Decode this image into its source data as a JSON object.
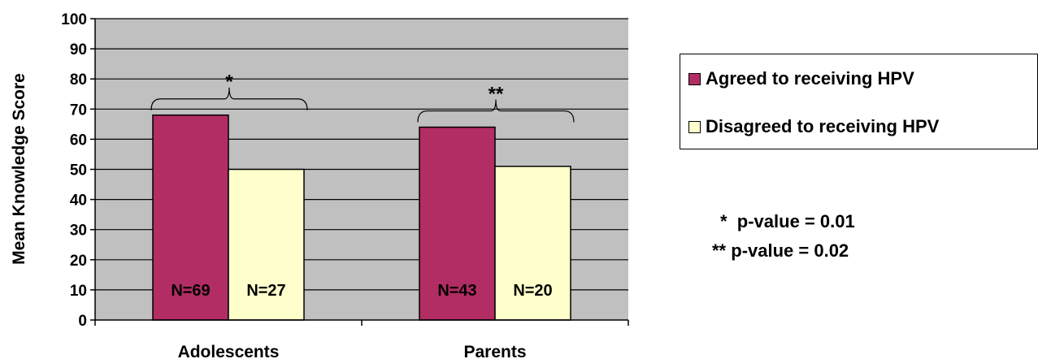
{
  "chart_data": {
    "type": "bar",
    "title": "",
    "xlabel": "",
    "ylabel": "Mean Knowledge Score",
    "ylim": [
      0,
      100
    ],
    "yticks": [
      "0",
      "10",
      "20",
      "30",
      "40",
      "50",
      "60",
      "70",
      "80",
      "90",
      "100"
    ],
    "grid": true,
    "legend_position": "right",
    "categories": [
      "Adolescents",
      "Parents"
    ],
    "series": [
      {
        "name": "Agreed to receiving HPV",
        "color": "#B22D63",
        "values": [
          68,
          64
        ],
        "labels": [
          "N=69",
          "N=43"
        ]
      },
      {
        "name": "Disagreed to receiving HPV",
        "color": "#FFFFCC",
        "values": [
          50,
          51
        ],
        "labels": [
          "N=27",
          "N=20"
        ]
      }
    ],
    "significance_markers": [
      "*",
      "**"
    ],
    "annotations": [
      {
        "marker": "*",
        "text": "p-value = 0.01"
      },
      {
        "marker": "**",
        "text": "p-value = 0.02"
      }
    ]
  }
}
